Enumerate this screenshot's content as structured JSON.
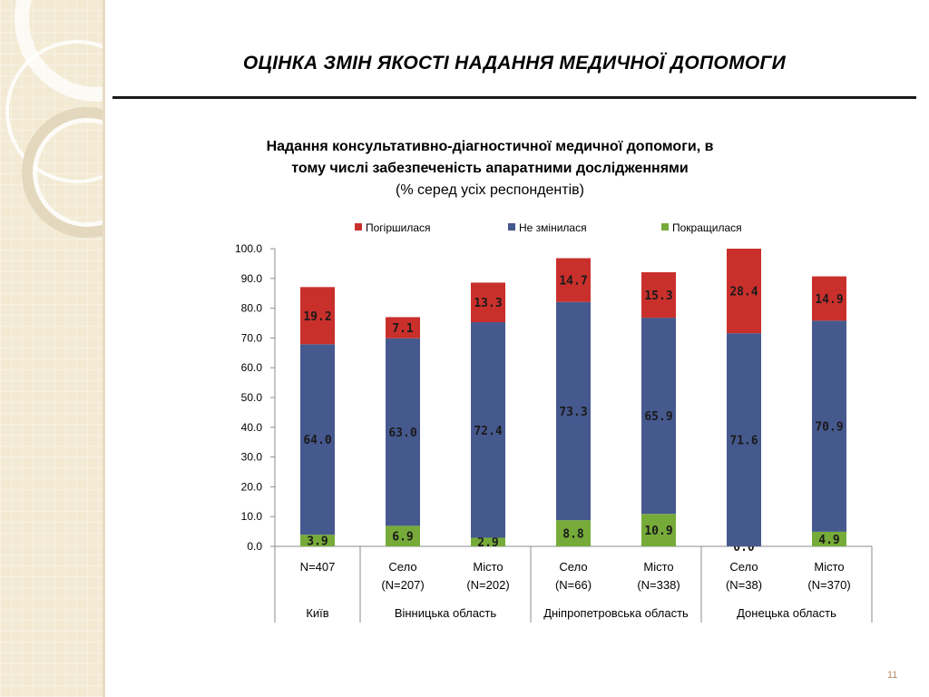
{
  "slide": {
    "title": "ОЦІНКА ЗМІН ЯКОСТІ НАДАННЯ МЕДИЧНОЇ ДОПОМОГИ",
    "page_number": "11"
  },
  "colors": {
    "worse": "#c9302c",
    "same": "#46598e",
    "better": "#76ab3a"
  },
  "chart_data": {
    "type": "bar",
    "stacked": true,
    "title_lines": [
      "Надання консультативно-діагностичної медичної допомоги, в",
      "тому числі забезпеченість апаратними дослідженнями",
      "(% серед усіх респондентів)"
    ],
    "ylim": [
      0,
      100
    ],
    "yticks": [
      "0.0",
      "10.0",
      "20.0",
      "30.0",
      "40.0",
      "50.0",
      "60.0",
      "70.0",
      "80.0",
      "90.0",
      "100.0"
    ],
    "legend_position": "top",
    "grid": false,
    "categories": [
      {
        "label": [
          "N=407"
        ],
        "group": "Київ"
      },
      {
        "label": [
          "Село",
          "(N=207)"
        ],
        "group": "Вінницька область"
      },
      {
        "label": [
          "Місто",
          "(N=202)"
        ],
        "group": "Вінницька область"
      },
      {
        "label": [
          "Село",
          "(N=66)"
        ],
        "group": "Дніпропетровська область"
      },
      {
        "label": [
          "Місто",
          "(N=338)"
        ],
        "group": "Дніпропетровська область"
      },
      {
        "label": [
          "Село",
          "(N=38)"
        ],
        "group": "Донецька область"
      },
      {
        "label": [
          "Місто",
          "(N=370)"
        ],
        "group": "Донецька область"
      }
    ],
    "groups": [
      "Київ",
      "Вінницька область",
      "Дніпропетровська область",
      "Донецька область"
    ],
    "series": [
      {
        "name": "Покращилася",
        "color_key": "better",
        "values": [
          3.9,
          6.9,
          2.9,
          8.8,
          10.9,
          0.0,
          4.9
        ],
        "labels": [
          "3.9",
          "6.9",
          "2.9",
          "8.8",
          "10.9",
          "0.0",
          "4.9"
        ]
      },
      {
        "name": "Не змінилася",
        "color_key": "same",
        "values": [
          64.0,
          63.0,
          72.4,
          73.3,
          65.9,
          71.6,
          70.9
        ],
        "labels": [
          "64.0",
          "63.0",
          "72.4",
          "73.3",
          "65.9",
          "71.6",
          "70.9"
        ]
      },
      {
        "name": "Погіршилася",
        "color_key": "worse",
        "values": [
          19.2,
          7.1,
          13.3,
          14.7,
          15.3,
          28.4,
          14.9
        ],
        "labels": [
          "19.2",
          "7.1",
          "13.3",
          "14.7",
          "15.3",
          "28.4",
          "14.9"
        ]
      }
    ],
    "legend_order": [
      "Погіршилася",
      "Не змінилася",
      "Покращилася"
    ]
  }
}
